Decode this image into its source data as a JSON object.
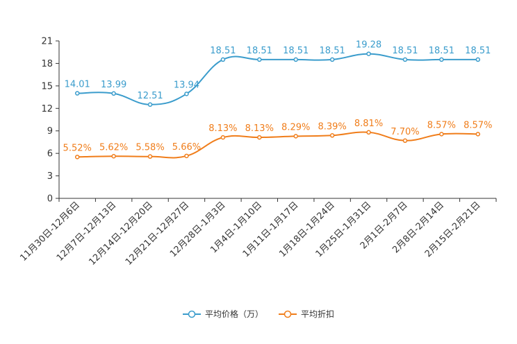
{
  "chart_data": {
    "type": "line",
    "categories": [
      "11月30日-12月6日",
      "12月7日-12月13日",
      "12月14日-12月20日",
      "12月21日-12月27日",
      "12月28日-1月3日",
      "1月4日-1月10日",
      "1月11日-1月17日",
      "1月18日-1月24日",
      "1月25日-1月31日",
      "2月1日-2月7日",
      "2月8日-2月14日",
      "2月15日-2月21日"
    ],
    "series": [
      {
        "name": "平均价格（万）",
        "color": "#3a9ccc",
        "values": [
          14.01,
          13.99,
          12.51,
          13.94,
          18.51,
          18.51,
          18.51,
          18.51,
          19.28,
          18.51,
          18.51,
          18.51
        ],
        "labels": [
          "14.01",
          "13.99",
          "12.51",
          "13.94",
          "18.51",
          "18.51",
          "18.51",
          "18.51",
          "19.28",
          "18.51",
          "18.51",
          "18.51"
        ]
      },
      {
        "name": "平均折扣",
        "color": "#f07d1a",
        "values": [
          5.52,
          5.62,
          5.58,
          5.66,
          8.13,
          8.13,
          8.29,
          8.39,
          8.81,
          7.7,
          8.57,
          8.57
        ],
        "labels": [
          "5.52%",
          "5.62%",
          "5.58%",
          "5.66%",
          "8.13%",
          "8.13%",
          "8.29%",
          "8.39%",
          "8.81%",
          "7.70%",
          "8.57%",
          "8.57%"
        ]
      }
    ],
    "yticks": [
      "0",
      "3",
      "6",
      "9",
      "12",
      "15",
      "18",
      "21"
    ],
    "ylim": [
      0,
      21
    ],
    "legend_position": "bottom-center",
    "title": "",
    "xlabel": "",
    "ylabel": ""
  }
}
